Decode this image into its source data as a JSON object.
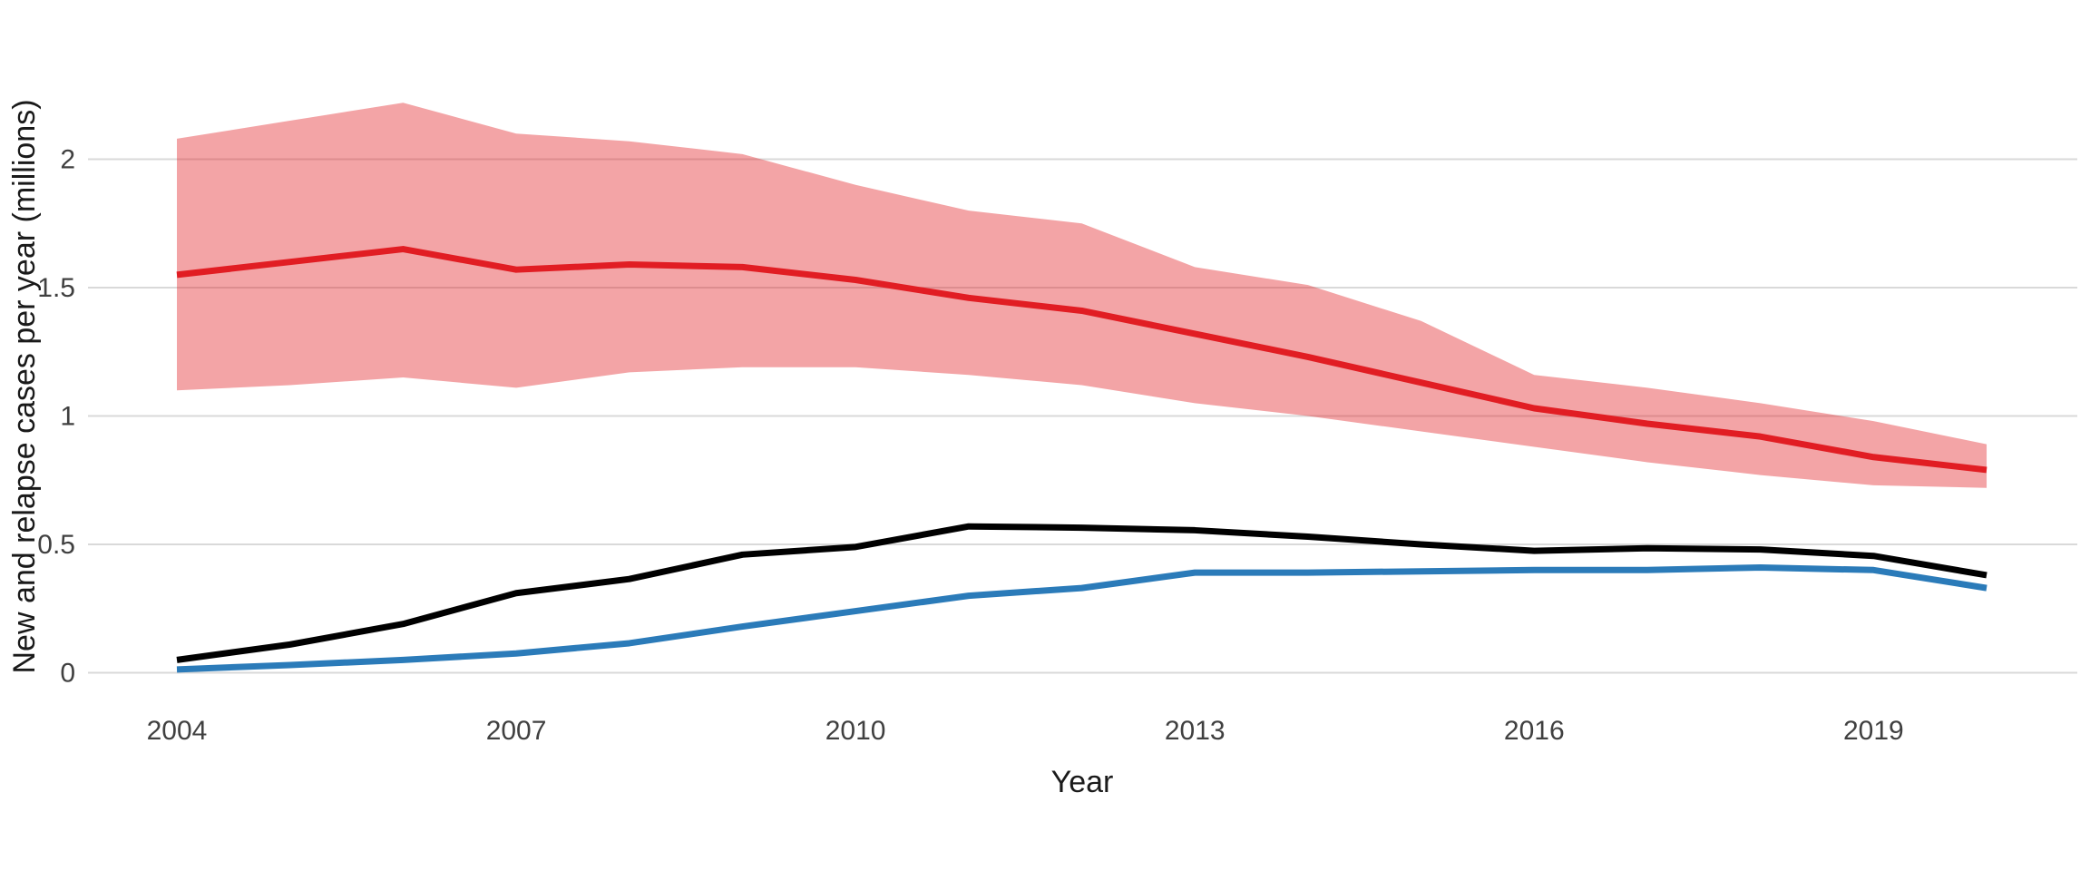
{
  "figure": {
    "background_color": "#ffffff",
    "gridline_color": "#d9d9d9",
    "tick_text_color": "#404040",
    "title_text_color": "#1a1a1a"
  },
  "chart_data": {
    "type": "line",
    "title": "",
    "xlabel": "Year",
    "ylabel": "New and relapse cases per year (millions)",
    "x": [
      2004,
      2005,
      2006,
      2007,
      2008,
      2009,
      2010,
      2011,
      2012,
      2013,
      2014,
      2015,
      2016,
      2017,
      2018,
      2019,
      2020
    ],
    "series": [
      {
        "name": "red-line-with-uncertainty-band",
        "color": "#e11d23",
        "values": [
          1.55,
          1.6,
          1.65,
          1.57,
          1.59,
          1.58,
          1.53,
          1.46,
          1.41,
          1.32,
          1.23,
          1.13,
          1.03,
          0.97,
          0.92,
          0.84,
          0.79
        ],
        "band_upper": [
          2.08,
          2.15,
          2.22,
          2.1,
          2.07,
          2.02,
          1.9,
          1.8,
          1.75,
          1.58,
          1.51,
          1.37,
          1.16,
          1.11,
          1.05,
          0.98,
          0.89
        ],
        "band_lower": [
          1.1,
          1.12,
          1.15,
          1.11,
          1.17,
          1.19,
          1.19,
          1.16,
          1.12,
          1.05,
          1.0,
          0.94,
          0.88,
          0.82,
          0.77,
          0.73,
          0.72
        ],
        "band_color": "#e21c20",
        "band_opacity": 0.4
      },
      {
        "name": "black-line",
        "color": "#000000",
        "values": [
          0.05,
          0.11,
          0.19,
          0.31,
          0.365,
          0.46,
          0.49,
          0.57,
          0.565,
          0.555,
          0.53,
          0.5,
          0.475,
          0.485,
          0.48,
          0.455,
          0.38
        ]
      },
      {
        "name": "blue-line",
        "color": "#2b7bb9",
        "values": [
          0.013,
          0.03,
          0.05,
          0.075,
          0.115,
          0.18,
          0.24,
          0.3,
          0.33,
          0.39,
          0.39,
          0.395,
          0.4,
          0.4,
          0.41,
          0.4,
          0.33
        ]
      }
    ],
    "x_ticks": [
      2004,
      2007,
      2010,
      2013,
      2016,
      2019
    ],
    "x_tick_labels": [
      "2004",
      "2007",
      "2010",
      "2013",
      "2016",
      "2019"
    ],
    "y_ticks": [
      0,
      0.5,
      1,
      1.5,
      2
    ],
    "y_tick_labels": [
      "0",
      "0.5",
      "1",
      "1.5",
      "2"
    ],
    "xlim": [
      2003.2,
      2020.8
    ],
    "ylim": [
      -0.11,
      2.34
    ],
    "grid": "horizontal-only",
    "legend": "none"
  }
}
